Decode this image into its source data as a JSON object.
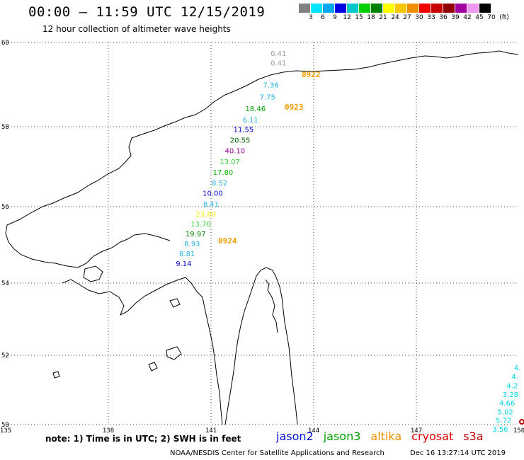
{
  "title": "00:00 — 11:59 UTC 12/15/2019",
  "subtitle": "12 hour collection of altimeter wave heights",
  "unit": "(ft)",
  "scale": {
    "labels": [
      "3",
      "6",
      "9",
      "12",
      "15",
      "18",
      "21",
      "24",
      "27",
      "30",
      "33",
      "36",
      "39",
      "42",
      "45",
      "70"
    ],
    "colors": [
      "#808080",
      "#00e5ff",
      "#00a8f0",
      "#0000e0",
      "#00c8c8",
      "#00d000",
      "#008000",
      "#ffff00",
      "#f5c800",
      "#f09000",
      "#f00000",
      "#c80000",
      "#900000",
      "#a000a0",
      "#f098f0",
      "#000000"
    ]
  },
  "lat_labels": [
    "60",
    "58",
    "56",
    "54",
    "52",
    "50"
  ],
  "lon_labels": [
    "135",
    "138",
    "141",
    "144",
    "147",
    "150"
  ],
  "passes": [
    "0922",
    "0923",
    "0924"
  ],
  "observations": [
    {
      "v": "0.41",
      "lon": 142.97,
      "lat": 59.68,
      "color": "#9a9a9a"
    },
    {
      "v": "0.41",
      "lon": 142.97,
      "lat": 59.45,
      "color": "#9a9a9a"
    },
    {
      "v": "7.36",
      "lon": 142.75,
      "lat": 58.93,
      "color": "#22b0e0"
    },
    {
      "v": "7.75",
      "lon": 142.65,
      "lat": 58.65,
      "color": "#22b0e0"
    },
    {
      "v": "18.46",
      "lon": 142.3,
      "lat": 58.37,
      "color": "#00a000"
    },
    {
      "v": "6.11",
      "lon": 142.15,
      "lat": 58.1,
      "color": "#22b0e0"
    },
    {
      "v": "11.55",
      "lon": 141.95,
      "lat": 57.87,
      "color": "#0000d0"
    },
    {
      "v": "20.55",
      "lon": 141.85,
      "lat": 57.6,
      "color": "#006000"
    },
    {
      "v": "40.10",
      "lon": 141.7,
      "lat": 57.34,
      "color": "#900090"
    },
    {
      "v": "13.07",
      "lon": 141.55,
      "lat": 57.06,
      "color": "#30d030"
    },
    {
      "v": "17.80",
      "lon": 141.35,
      "lat": 56.8,
      "color": "#00b000"
    },
    {
      "v": "8.52",
      "lon": 141.25,
      "lat": 56.53,
      "color": "#22b0e0"
    },
    {
      "v": "10.00",
      "lon": 141.05,
      "lat": 56.27,
      "color": "#0000d0"
    },
    {
      "v": "8.41",
      "lon": 141.0,
      "lat": 56.0,
      "color": "#22b0e0"
    },
    {
      "v": "23.89",
      "lon": 140.85,
      "lat": 55.74,
      "color": "#f0f000"
    },
    {
      "v": "13.70",
      "lon": 140.7,
      "lat": 55.48,
      "color": "#40d040"
    },
    {
      "v": "19.97",
      "lon": 140.55,
      "lat": 55.22,
      "color": "#008000"
    },
    {
      "v": "8.93",
      "lon": 140.45,
      "lat": 54.96,
      "color": "#22b0e0"
    },
    {
      "v": "8.81",
      "lon": 140.3,
      "lat": 54.7,
      "color": "#22b0e0"
    },
    {
      "v": "9.14",
      "lon": 140.2,
      "lat": 54.44,
      "color": "#0000d0"
    },
    {
      "v": "4.",
      "lon": 149.95,
      "lat": 51.57,
      "color": "#00d8e8"
    },
    {
      "v": "4.",
      "lon": 149.88,
      "lat": 51.32,
      "color": "#00d8e8"
    },
    {
      "v": "4.2",
      "lon": 149.8,
      "lat": 51.05,
      "color": "#00d8e8"
    },
    {
      "v": "3.28",
      "lon": 149.75,
      "lat": 50.8,
      "color": "#00d8e8"
    },
    {
      "v": "4.66",
      "lon": 149.65,
      "lat": 50.55,
      "color": "#00d8e8"
    },
    {
      "v": "5.02",
      "lon": 149.6,
      "lat": 50.3,
      "color": "#00d8e8"
    },
    {
      "v": "5.72",
      "lon": 149.55,
      "lat": 50.05,
      "color": "#00d8e8"
    },
    {
      "v": "3.56",
      "lon": 149.45,
      "lat": 49.8,
      "color": "#00d8e8"
    }
  ],
  "note": "note: 1) Time is in UTC; 2) SWH is in feet",
  "satellites": [
    {
      "name": "jason2",
      "color": "#0010d0"
    },
    {
      "name": "jason3",
      "color": "#00a000"
    },
    {
      "name": "altika",
      "color": "#f09000"
    },
    {
      "name": "cryosat",
      "color": "#e00000"
    },
    {
      "name": "s3a",
      "color": "#c00000"
    }
  ],
  "footer_left": "NOAA/NESDIS Center for Satellite Applications and Research",
  "footer_right": "Dec 16 13:27:14 UTC 2019"
}
